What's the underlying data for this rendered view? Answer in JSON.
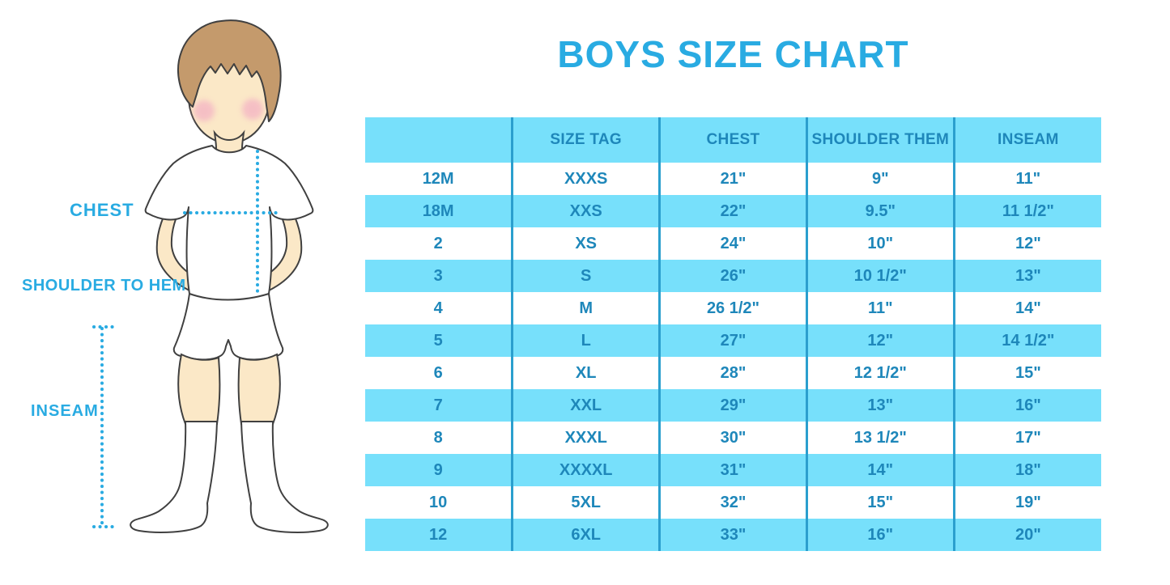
{
  "title": "BOYS SIZE CHART",
  "figure": {
    "labels": {
      "chest": "CHEST",
      "shoulder_to_hem": "SHOULDER TO HEM",
      "inseam": "INSEAM"
    }
  },
  "chart_data": {
    "type": "table",
    "title": "BOYS SIZE CHART",
    "columns": [
      "",
      "SIZE TAG",
      "CHEST",
      "SHOULDER THEM",
      "INSEAM"
    ],
    "rows": [
      [
        "12M",
        "XXXS",
        "21\"",
        "9\"",
        "11\""
      ],
      [
        "18M",
        "XXS",
        "22\"",
        "9.5\"",
        "11 1/2\""
      ],
      [
        "2",
        "XS",
        "24\"",
        "10\"",
        "12\""
      ],
      [
        "3",
        "S",
        "26\"",
        "10 1/2\"",
        "13\""
      ],
      [
        "4",
        "M",
        "26 1/2\"",
        "11\"",
        "14\""
      ],
      [
        "5",
        "L",
        "27\"",
        "12\"",
        "14 1/2\""
      ],
      [
        "6",
        "XL",
        "28\"",
        "12 1/2\"",
        "15\""
      ],
      [
        "7",
        "XXL",
        "29\"",
        "13\"",
        "16\""
      ],
      [
        "8",
        "XXXL",
        "30\"",
        "13 1/2\"",
        "17\""
      ],
      [
        "9",
        "XXXXL",
        "31\"",
        "14\"",
        "18\""
      ],
      [
        "10",
        "5XL",
        "32\"",
        "15\"",
        "19\""
      ],
      [
        "12",
        "6XL",
        "33\"",
        "16\"",
        "20\""
      ]
    ]
  },
  "colors": {
    "accent_blue": "#29ABE2",
    "table_text_blue": "#1E87BA",
    "row_stripe_cyan": "#77E0FB",
    "column_line_blue": "#2B9FCE",
    "skin": "#FBE8C7",
    "hair_brown": "#C49A6C",
    "blush_pink": "#F4B6C4",
    "outline_gray": "#404040"
  }
}
